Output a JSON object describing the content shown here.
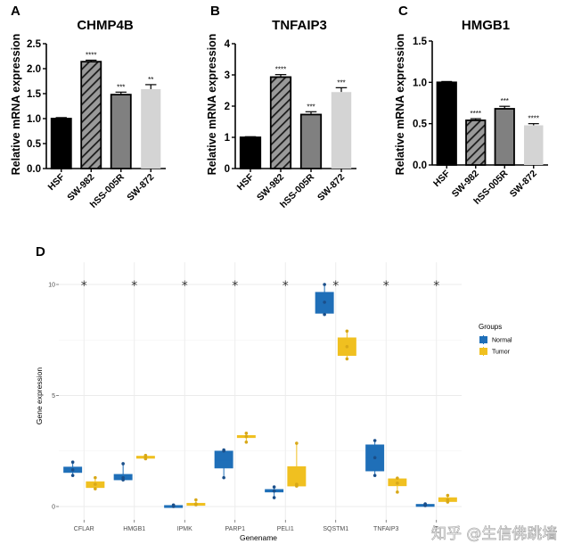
{
  "chart_data": [
    {
      "panel": "A",
      "type": "bar",
      "title": "CHMP4B",
      "xlabel": "",
      "ylabel": "Relative mRNA expression",
      "ylim": [
        0,
        2.5
      ],
      "yticks": [
        "0.0",
        "0.5",
        "1.0",
        "1.5",
        "2.0",
        "2.5"
      ],
      "categories": [
        "HSF",
        "SW-982",
        "hSS-005R",
        "SW-872"
      ],
      "values": [
        1.0,
        2.14,
        1.48,
        1.59
      ],
      "errors": [
        0.02,
        0.03,
        0.05,
        0.09
      ],
      "significance": [
        "",
        "****",
        "***",
        "**"
      ],
      "fills": [
        "#000000",
        "hatch",
        "#808080",
        "#d4d4d4"
      ]
    },
    {
      "panel": "B",
      "type": "bar",
      "title": "TNFAIP3",
      "xlabel": "",
      "ylabel": "Relative mRNA expression",
      "ylim": [
        0,
        4
      ],
      "yticks": [
        "0",
        "1",
        "2",
        "3",
        "4"
      ],
      "categories": [
        "HSF",
        "SW-982",
        "hSS-005R",
        "SW-872"
      ],
      "values": [
        1.0,
        2.93,
        1.73,
        2.45
      ],
      "errors": [
        0.02,
        0.08,
        0.09,
        0.14
      ],
      "significance": [
        "",
        "****",
        "***",
        "***"
      ],
      "fills": [
        "#000000",
        "hatch",
        "#808080",
        "#d4d4d4"
      ]
    },
    {
      "panel": "C",
      "type": "bar",
      "title": "HMGB1",
      "xlabel": "",
      "ylabel": "Relative mRNA expression",
      "ylim": [
        0,
        1.5
      ],
      "yticks": [
        "0.0",
        "0.5",
        "1.0",
        "1.5"
      ],
      "categories": [
        "HSF",
        "SW-982",
        "hSS-005R",
        "SW-872"
      ],
      "values": [
        1.0,
        0.54,
        0.68,
        0.48
      ],
      "errors": [
        0.01,
        0.02,
        0.03,
        0.02
      ],
      "significance": [
        "",
        "****",
        "***",
        "****"
      ],
      "fills": [
        "#000000",
        "hatch",
        "#808080",
        "#d4d4d4"
      ]
    },
    {
      "panel": "D",
      "type": "box",
      "title": "",
      "xlabel": "Genename",
      "ylabel": "Gene expression",
      "ylim": [
        -0.6,
        11
      ],
      "yticks": [
        "0",
        "5",
        "10"
      ],
      "grid": true,
      "legend": {
        "title": "Groups",
        "position": "right",
        "entries": [
          "Normal",
          "Tumor"
        ]
      },
      "series_colors": {
        "Normal": "#1f6fb8",
        "Tumor": "#f0c020"
      },
      "categories": [
        "CFLAR",
        "HMGB1",
        "IPMK",
        "PARP1",
        "PELI1",
        "SQSTM1",
        "TNFAIP3",
        "T"
      ],
      "significance_y": 10,
      "significance": [
        "*",
        "*",
        "*",
        "*",
        "*",
        "*",
        "*",
        "*"
      ],
      "boxes": [
        {
          "gene": "CFLAR",
          "Normal": {
            "min": 1.4,
            "q1": 1.53,
            "median": 1.65,
            "q3": 1.78,
            "max": 2.0,
            "points": [
              2.0,
              1.65,
              1.4
            ]
          },
          "Tumor": {
            "min": 0.8,
            "q1": 0.85,
            "median": 1.0,
            "q3": 1.12,
            "max": 1.3,
            "points": [
              1.3,
              1.0,
              0.8
            ]
          }
        },
        {
          "gene": "HMGB1",
          "Normal": {
            "min": 1.2,
            "q1": 1.2,
            "median": 1.3,
            "q3": 1.45,
            "max": 1.93,
            "points": [
              1.93,
              1.3,
              1.2
            ]
          },
          "Tumor": {
            "min": 2.15,
            "q1": 2.17,
            "median": 2.22,
            "q3": 2.27,
            "max": 2.3,
            "points": [
              2.3,
              2.22,
              2.15
            ]
          }
        },
        {
          "gene": "IPMK",
          "Normal": {
            "min": 0.0,
            "q1": 0.0,
            "median": 0.02,
            "q3": 0.05,
            "max": 0.07,
            "points": [
              0.07,
              0.02,
              0.0
            ]
          },
          "Tumor": {
            "min": 0.08,
            "q1": 0.1,
            "median": 0.12,
            "q3": 0.15,
            "max": 0.3,
            "points": [
              0.3,
              0.12,
              0.08
            ]
          }
        },
        {
          "gene": "PARP1",
          "Normal": {
            "min": 1.3,
            "q1": 1.73,
            "median": 2.1,
            "q3": 2.5,
            "max": 2.55,
            "points": [
              2.55,
              2.5,
              1.3
            ]
          },
          "Tumor": {
            "min": 2.9,
            "q1": 3.1,
            "median": 3.15,
            "q3": 3.2,
            "max": 3.3,
            "points": [
              3.3,
              3.15,
              2.9
            ]
          }
        },
        {
          "gene": "PELI1",
          "Normal": {
            "min": 0.4,
            "q1": 0.65,
            "median": 0.7,
            "q3": 0.77,
            "max": 0.88,
            "points": [
              0.88,
              0.7,
              0.4
            ]
          },
          "Tumor": {
            "min": 0.92,
            "q1": 0.92,
            "median": 1.0,
            "q3": 1.8,
            "max": 2.85,
            "points": [
              2.85,
              1.0,
              0.92
            ]
          }
        },
        {
          "gene": "SQSTM1",
          "Normal": {
            "min": 8.65,
            "q1": 8.7,
            "median": 9.2,
            "q3": 9.65,
            "max": 10.0,
            "points": [
              10.0,
              9.2,
              8.65
            ]
          },
          "Tumor": {
            "min": 6.65,
            "q1": 6.8,
            "median": 7.2,
            "q3": 7.6,
            "max": 7.9,
            "points": [
              7.9,
              7.2,
              6.65
            ]
          }
        },
        {
          "gene": "TNFAIP3",
          "Normal": {
            "min": 1.4,
            "q1": 1.6,
            "median": 2.2,
            "q3": 2.78,
            "max": 2.97,
            "points": [
              2.97,
              2.2,
              1.4
            ]
          },
          "Tumor": {
            "min": 0.65,
            "q1": 0.93,
            "median": 1.05,
            "q3": 1.25,
            "max": 1.28,
            "points": [
              1.28,
              1.05,
              0.65
            ]
          }
        },
        {
          "gene": "T",
          "Normal": {
            "min": 0.04,
            "q1": 0.05,
            "median": 0.08,
            "q3": 0.1,
            "max": 0.12,
            "points": [
              0.12,
              0.08,
              0.04
            ]
          },
          "Tumor": {
            "min": 0.2,
            "q1": 0.22,
            "median": 0.3,
            "q3": 0.4,
            "max": 0.5,
            "points": [
              0.5,
              0.3,
              0.2
            ]
          }
        }
      ]
    }
  ],
  "panel_labels": [
    "A",
    "B",
    "C",
    "D"
  ],
  "watermark": "知乎 @生信佛跳墙"
}
